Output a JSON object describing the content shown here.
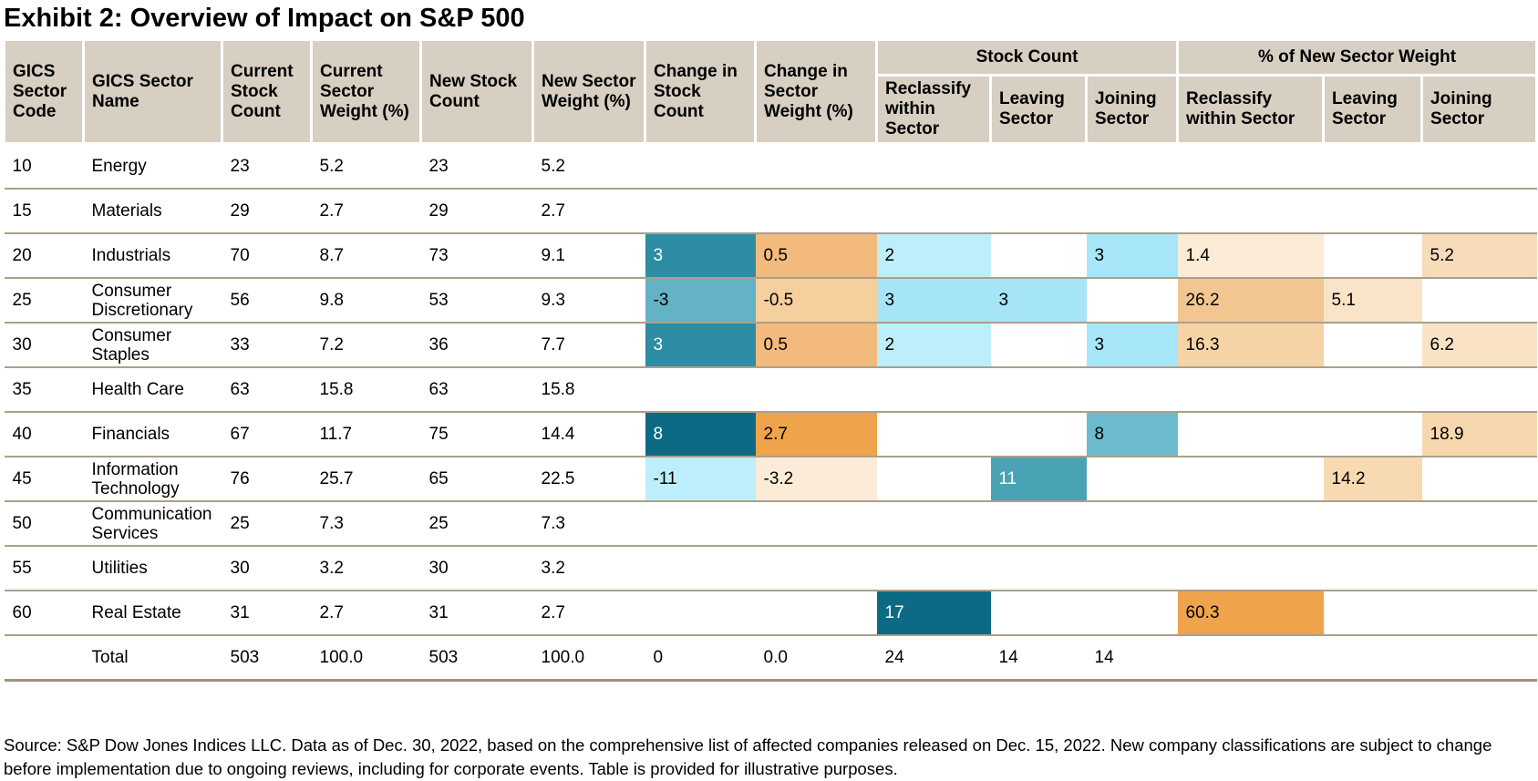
{
  "title": "Exhibit 2: Overview of Impact on S&P 500",
  "colors": {
    "header_bg": "#d6cfc2",
    "grid_line": "#aba089",
    "teal_dark": "#0d6a85",
    "teal": "#2e8ca3",
    "orange_strong": "#efa34b",
    "orange_light": "#f2ba7c",
    "blue_light": "#a6e6f8"
  },
  "table": {
    "headers": {
      "gics_code": "GICS Sector Code",
      "gics_name": "GICS Sector Name",
      "current_stock_count": "Current Stock Count",
      "current_sector_weight": "Current Sector Weight (%)",
      "new_stock_count": "New Stock Count",
      "new_sector_weight": "New Sector Weight (%)",
      "change_stock_count": "Change in Stock Count",
      "change_sector_weight": "Change in Sector Weight (%)",
      "stock_count_group": "Stock Count",
      "pct_new_weight_group": "% of New Sector Weight",
      "reclassify_within_count": "Reclassify within Sector",
      "leaving_count": "Leaving Sector",
      "joining_count": "Joining Sector",
      "reclassify_within_pct": "Reclassify within Sector",
      "leaving_pct": "Leaving Sector",
      "joining_pct": "Joining Sector"
    },
    "rows": [
      {
        "name": "row-energy",
        "cells": [
          "10",
          "Energy",
          "23",
          "5.2",
          "23",
          "5.2",
          "",
          "",
          "",
          "",
          "",
          "",
          "",
          ""
        ]
      },
      {
        "name": "row-materials",
        "cells": [
          "15",
          "Materials",
          "29",
          "2.7",
          "29",
          "2.7",
          "",
          "",
          "",
          "",
          "",
          "",
          "",
          ""
        ]
      },
      {
        "name": "row-industrials",
        "cells": [
          "20",
          "Industrials",
          "70",
          "8.7",
          "73",
          "9.1",
          {
            "v": "3",
            "bg": "#2e8ca3",
            "fg": "#ffffff"
          },
          {
            "v": "0.5",
            "bg": "#f2ba7c"
          },
          {
            "v": "2",
            "bg": "#bceefb"
          },
          "",
          {
            "v": "3",
            "bg": "#a6e6f8"
          },
          {
            "v": "1.4",
            "bg": "#fbebd7"
          },
          "",
          {
            "v": "5.2",
            "bg": "#f7dcba"
          }
        ]
      },
      {
        "name": "row-consumer-discretionary",
        "cells": [
          "25",
          "Consumer Discretionary",
          "56",
          "9.8",
          "53",
          "9.3",
          {
            "v": "-3",
            "bg": "#63b2c6"
          },
          {
            "v": "-0.5",
            "bg": "#f5cf9e"
          },
          {
            "v": "3",
            "bg": "#a6e4f7"
          },
          {
            "v": "3",
            "bg": "#a6e4f7"
          },
          "",
          {
            "v": "26.2",
            "bg": "#f2c690"
          },
          {
            "v": "5.1",
            "bg": "#f9e4c8"
          },
          ""
        ]
      },
      {
        "name": "row-consumer-staples",
        "cells": [
          "30",
          "Consumer Staples",
          "33",
          "7.2",
          "36",
          "7.7",
          {
            "v": "3",
            "bg": "#2e8ca3",
            "fg": "#ffffff"
          },
          {
            "v": "0.5",
            "bg": "#f2ba7c"
          },
          {
            "v": "2",
            "bg": "#bceefb"
          },
          "",
          {
            "v": "3",
            "bg": "#a6e6f8"
          },
          {
            "v": "16.3",
            "bg": "#f5d3a6"
          },
          "",
          {
            "v": "6.2",
            "bg": "#f9e3c4"
          }
        ]
      },
      {
        "name": "row-health-care",
        "cells": [
          "35",
          "Health Care",
          "63",
          "15.8",
          "63",
          "15.8",
          "",
          "",
          "",
          "",
          "",
          "",
          "",
          ""
        ]
      },
      {
        "name": "row-financials",
        "cells": [
          "40",
          "Financials",
          "67",
          "11.7",
          "75",
          "14.4",
          {
            "v": "8",
            "bg": "#0d6a85",
            "fg": "#ffffff"
          },
          {
            "v": "2.7",
            "bg": "#efa34b"
          },
          "",
          "",
          {
            "v": "8",
            "bg": "#6cbacd"
          },
          "",
          "",
          {
            "v": "18.9",
            "bg": "#f7d7ae"
          }
        ]
      },
      {
        "name": "row-information-technology",
        "cells": [
          "45",
          "Information Technology",
          "76",
          "25.7",
          "65",
          "22.5",
          {
            "v": "-11",
            "bg": "#bceefb"
          },
          {
            "v": "-3.2",
            "bg": "#fbebd7"
          },
          "",
          {
            "v": "11",
            "bg": "#4aa2b5",
            "fg": "#ffffff"
          },
          "",
          "",
          {
            "v": "14.2",
            "bg": "#f7d9b2"
          },
          ""
        ]
      },
      {
        "name": "row-communication-services",
        "cells": [
          "50",
          "Communication Services",
          "25",
          "7.3",
          "25",
          "7.3",
          "",
          "",
          "",
          "",
          "",
          "",
          "",
          ""
        ]
      },
      {
        "name": "row-utilities",
        "cells": [
          "55",
          "Utilities",
          "30",
          "3.2",
          "30",
          "3.2",
          "",
          "",
          "",
          "",
          "",
          "",
          "",
          ""
        ]
      },
      {
        "name": "row-real-estate",
        "cells": [
          "60",
          "Real Estate",
          "31",
          "2.7",
          "31",
          "2.7",
          "",
          "",
          {
            "v": "17",
            "bg": "#0d6a85",
            "fg": "#ffffff"
          },
          "",
          "",
          {
            "v": "60.3",
            "bg": "#efa34b"
          },
          "",
          ""
        ]
      },
      {
        "name": "row-total",
        "cells": [
          "",
          "Total",
          "503",
          "100.0",
          "503",
          "100.0",
          "0",
          "0.0",
          "24",
          "14",
          "14",
          "",
          "",
          ""
        ]
      }
    ]
  },
  "source_note": "Source: S&P Dow Jones Indices LLC. Data as of Dec. 30, 2022, based on the comprehensive list of affected companies released on Dec. 15, 2022. New company classifications are subject to change before implementation due to ongoing reviews, including for corporate events. Table is provided for illustrative purposes."
}
